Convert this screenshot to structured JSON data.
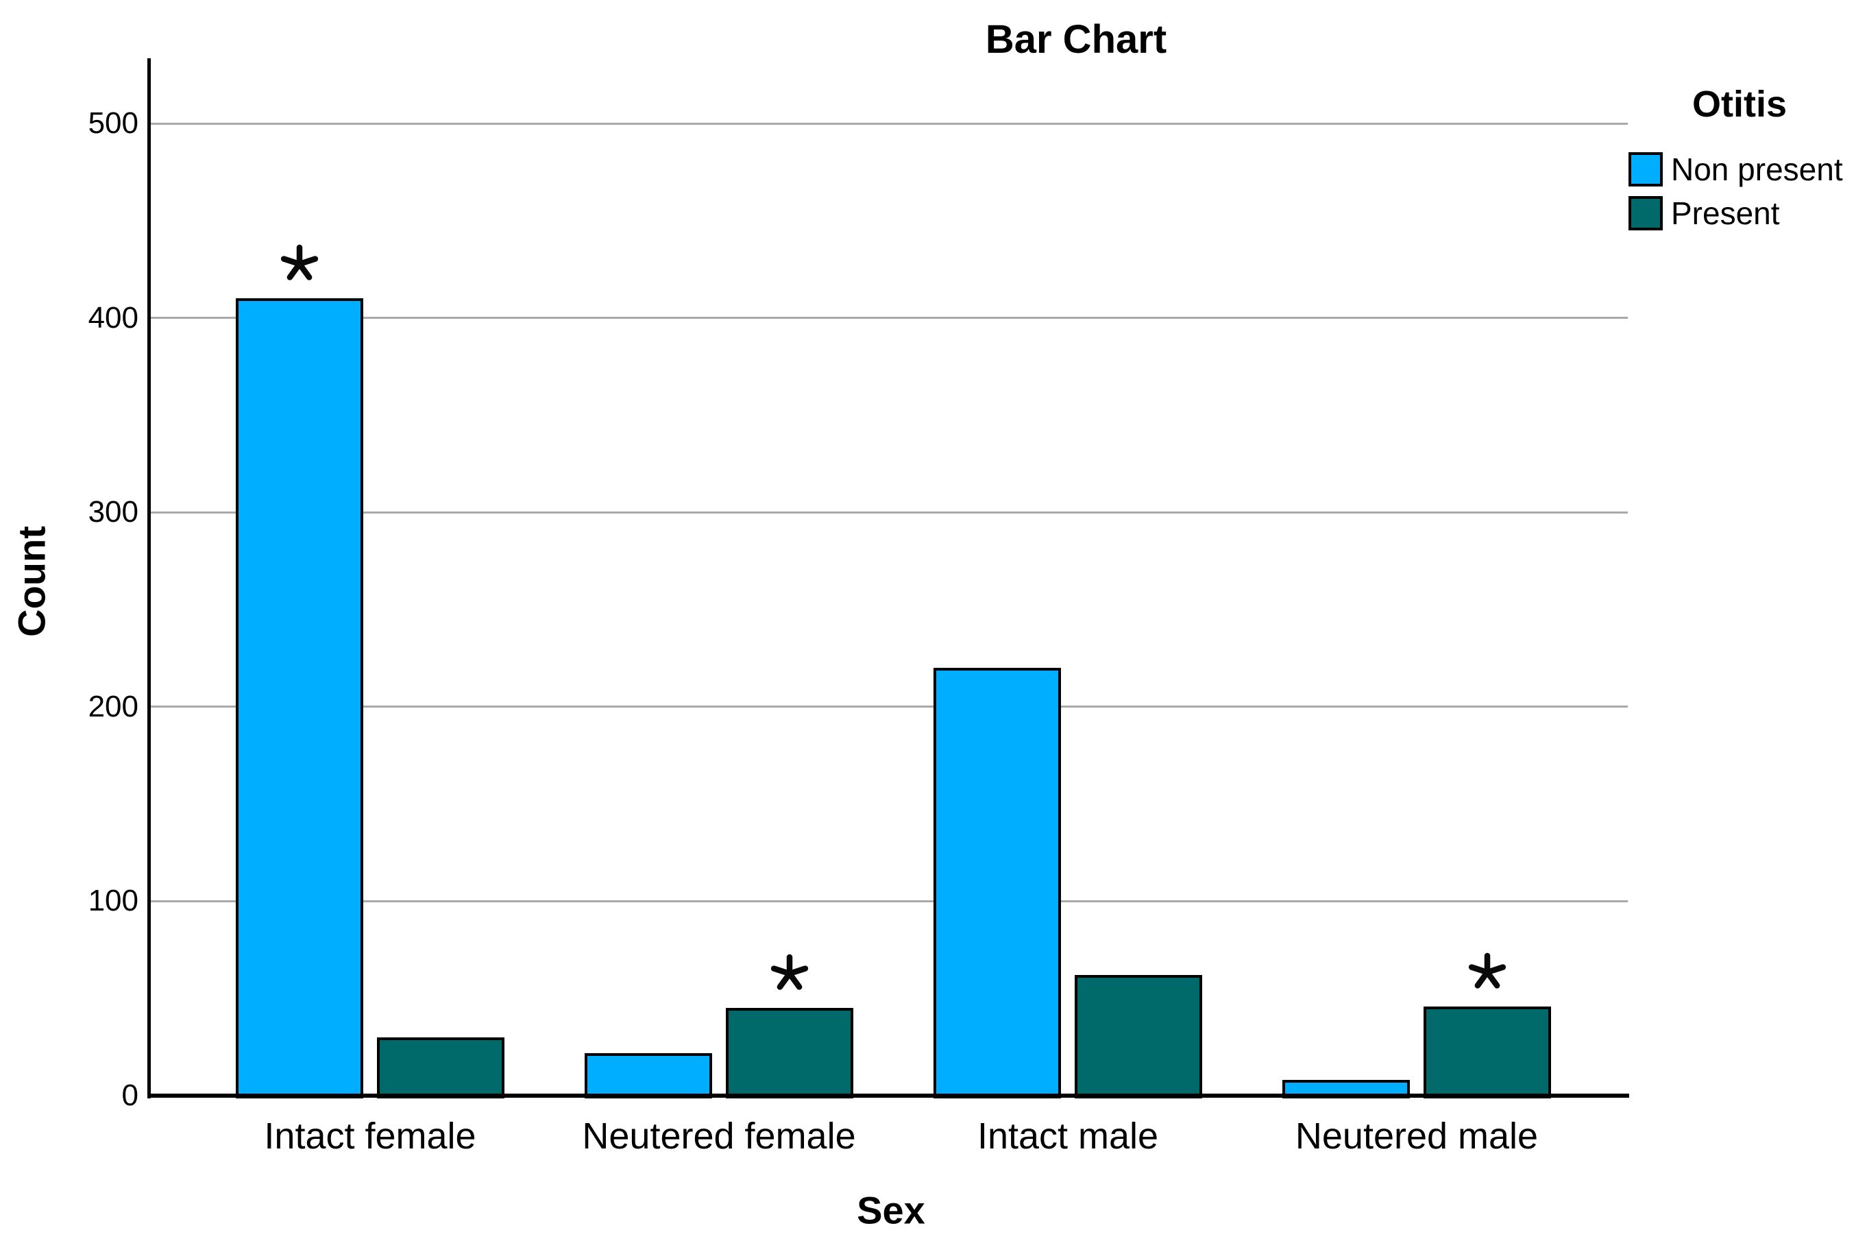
{
  "figure": {
    "title": "Bar Chart",
    "y_axis_title": "Count",
    "x_axis_title": "Sex",
    "legend_title": "Otitis"
  },
  "chart_data": {
    "type": "bar",
    "title": "Bar Chart",
    "xlabel": "Sex",
    "ylabel": "Count",
    "categories": [
      "Intact female",
      "Neutered female",
      "Intact male",
      "Neutered male"
    ],
    "series": [
      {
        "name": "Non present",
        "color": "#00AEFF",
        "values": [
          410,
          22,
          220,
          8
        ]
      },
      {
        "name": "Present",
        "color": "#006A6B",
        "values": [
          30,
          45,
          62,
          46
        ]
      }
    ],
    "y_ticks": [
      0,
      100,
      200,
      300,
      400,
      500
    ],
    "ylim": [
      0,
      532
    ],
    "grid": true,
    "gridline_color": "#A9A9A9",
    "bar_border_color": "#000000",
    "axis_color": "#000000",
    "legend_title": "Otitis",
    "legend_position": "top-right",
    "annotations": [
      {
        "category_index": 0,
        "series_index": 0,
        "marker": "*"
      },
      {
        "category_index": 1,
        "series_index": 1,
        "marker": "*"
      },
      {
        "category_index": 3,
        "series_index": 1,
        "marker": "*"
      }
    ]
  }
}
